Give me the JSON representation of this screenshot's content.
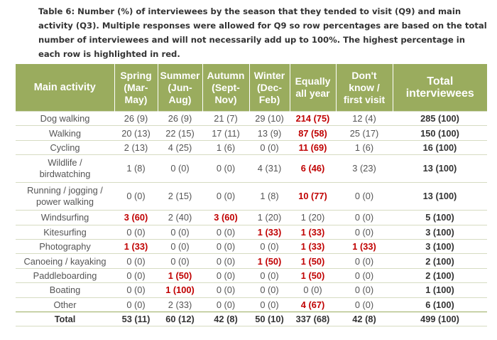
{
  "caption": "Table 6: Number (%) of interviewees by the season that they tended to visit (Q9) and main activity (Q3). Multiple responses were allowed for Q9 so row percentages are based on the total number of interviewees and will not necessarily add up to 100%. The highest percentage in each row is highlighted in red.",
  "columns": [
    [
      "Main activity"
    ],
    [
      "Spring",
      "(Mar-",
      "May)"
    ],
    [
      "Summer",
      "(Jun-",
      "Aug)"
    ],
    [
      "Autumn",
      "(Sept-",
      "Nov)"
    ],
    [
      "Winter",
      "(Dec-",
      "Feb)"
    ],
    [
      "Equally",
      "all year"
    ],
    [
      "Don't",
      "know /",
      "first visit"
    ],
    [
      "Total",
      "interviewees"
    ]
  ],
  "rows": [
    {
      "activity": [
        "Dog walking"
      ],
      "cells": [
        "26 (9)",
        "26 (9)",
        "21 (7)",
        "29 (10)",
        "214 (75)",
        "12 (4)",
        "285 (100)"
      ],
      "highlight": [
        4
      ]
    },
    {
      "activity": [
        "Walking"
      ],
      "cells": [
        "20 (13)",
        "22 (15)",
        "17 (11)",
        "13 (9)",
        "87 (58)",
        "25 (17)",
        "150 (100)"
      ],
      "highlight": [
        4
      ]
    },
    {
      "activity": [
        "Cycling"
      ],
      "cells": [
        "2 (13)",
        "4 (25)",
        "1 (6)",
        "0 (0)",
        "11 (69)",
        "1 (6)",
        "16 (100)"
      ],
      "highlight": [
        4
      ]
    },
    {
      "activity": [
        "Wildlife /",
        "birdwatching"
      ],
      "cells": [
        "1 (8)",
        "0 (0)",
        "0 (0)",
        "4 (31)",
        "6 (46)",
        "3 (23)",
        "13 (100)"
      ],
      "highlight": [
        4
      ]
    },
    {
      "activity": [
        "Running / jogging /",
        "power walking"
      ],
      "cells": [
        "0 (0)",
        "2 (15)",
        "0 (0)",
        "1 (8)",
        "10 (77)",
        "0 (0)",
        "13 (100)"
      ],
      "highlight": [
        4
      ]
    },
    {
      "activity": [
        "Windsurfing"
      ],
      "cells": [
        "3 (60)",
        "2 (40)",
        "3 (60)",
        "1 (20)",
        "1 (20)",
        "0 (0)",
        "5 (100)"
      ],
      "highlight": [
        0,
        2
      ]
    },
    {
      "activity": [
        "Kitesurfing"
      ],
      "cells": [
        "0 (0)",
        "0 (0)",
        "0 (0)",
        "1 (33)",
        "1 (33)",
        "0 (0)",
        "3 (100)"
      ],
      "highlight": [
        3,
        4
      ]
    },
    {
      "activity": [
        "Photography"
      ],
      "cells": [
        "1 (33)",
        "0 (0)",
        "0 (0)",
        "0 (0)",
        "1 (33)",
        "1 (33)",
        "3 (100)"
      ],
      "highlight": [
        0,
        4,
        5
      ]
    },
    {
      "activity": [
        "Canoeing / kayaking"
      ],
      "cells": [
        "0 (0)",
        "0 (0)",
        "0 (0)",
        "1 (50)",
        "1 (50)",
        "0 (0)",
        "2 (100)"
      ],
      "highlight": [
        3,
        4
      ]
    },
    {
      "activity": [
        "Paddleboarding"
      ],
      "cells": [
        "0 (0)",
        "1 (50)",
        "0 (0)",
        "0 (0)",
        "1 (50)",
        "0 (0)",
        "2 (100)"
      ],
      "highlight": [
        1,
        4
      ]
    },
    {
      "activity": [
        "Boating"
      ],
      "cells": [
        "0 (0)",
        "1 (100)",
        "0 (0)",
        "0 (0)",
        "0 (0)",
        "0 (0)",
        "1 (100)"
      ],
      "highlight": [
        1
      ]
    },
    {
      "activity": [
        "Other"
      ],
      "cells": [
        "0 (0)",
        "2 (33)",
        "0 (0)",
        "0 (0)",
        "4 (67)",
        "0 (0)",
        "6 (100)"
      ],
      "highlight": [
        4
      ]
    },
    {
      "activity": [
        "Total"
      ],
      "cells": [
        "53 (11)",
        "60 (12)",
        "42 (8)",
        "50 (10)",
        "337 (68)",
        "42 (8)",
        "499 (100)"
      ],
      "highlight": [],
      "is_total": true
    }
  ],
  "colors": {
    "header_bg": "#9aac5e",
    "highlight": "#c00000",
    "text": "#555555"
  }
}
